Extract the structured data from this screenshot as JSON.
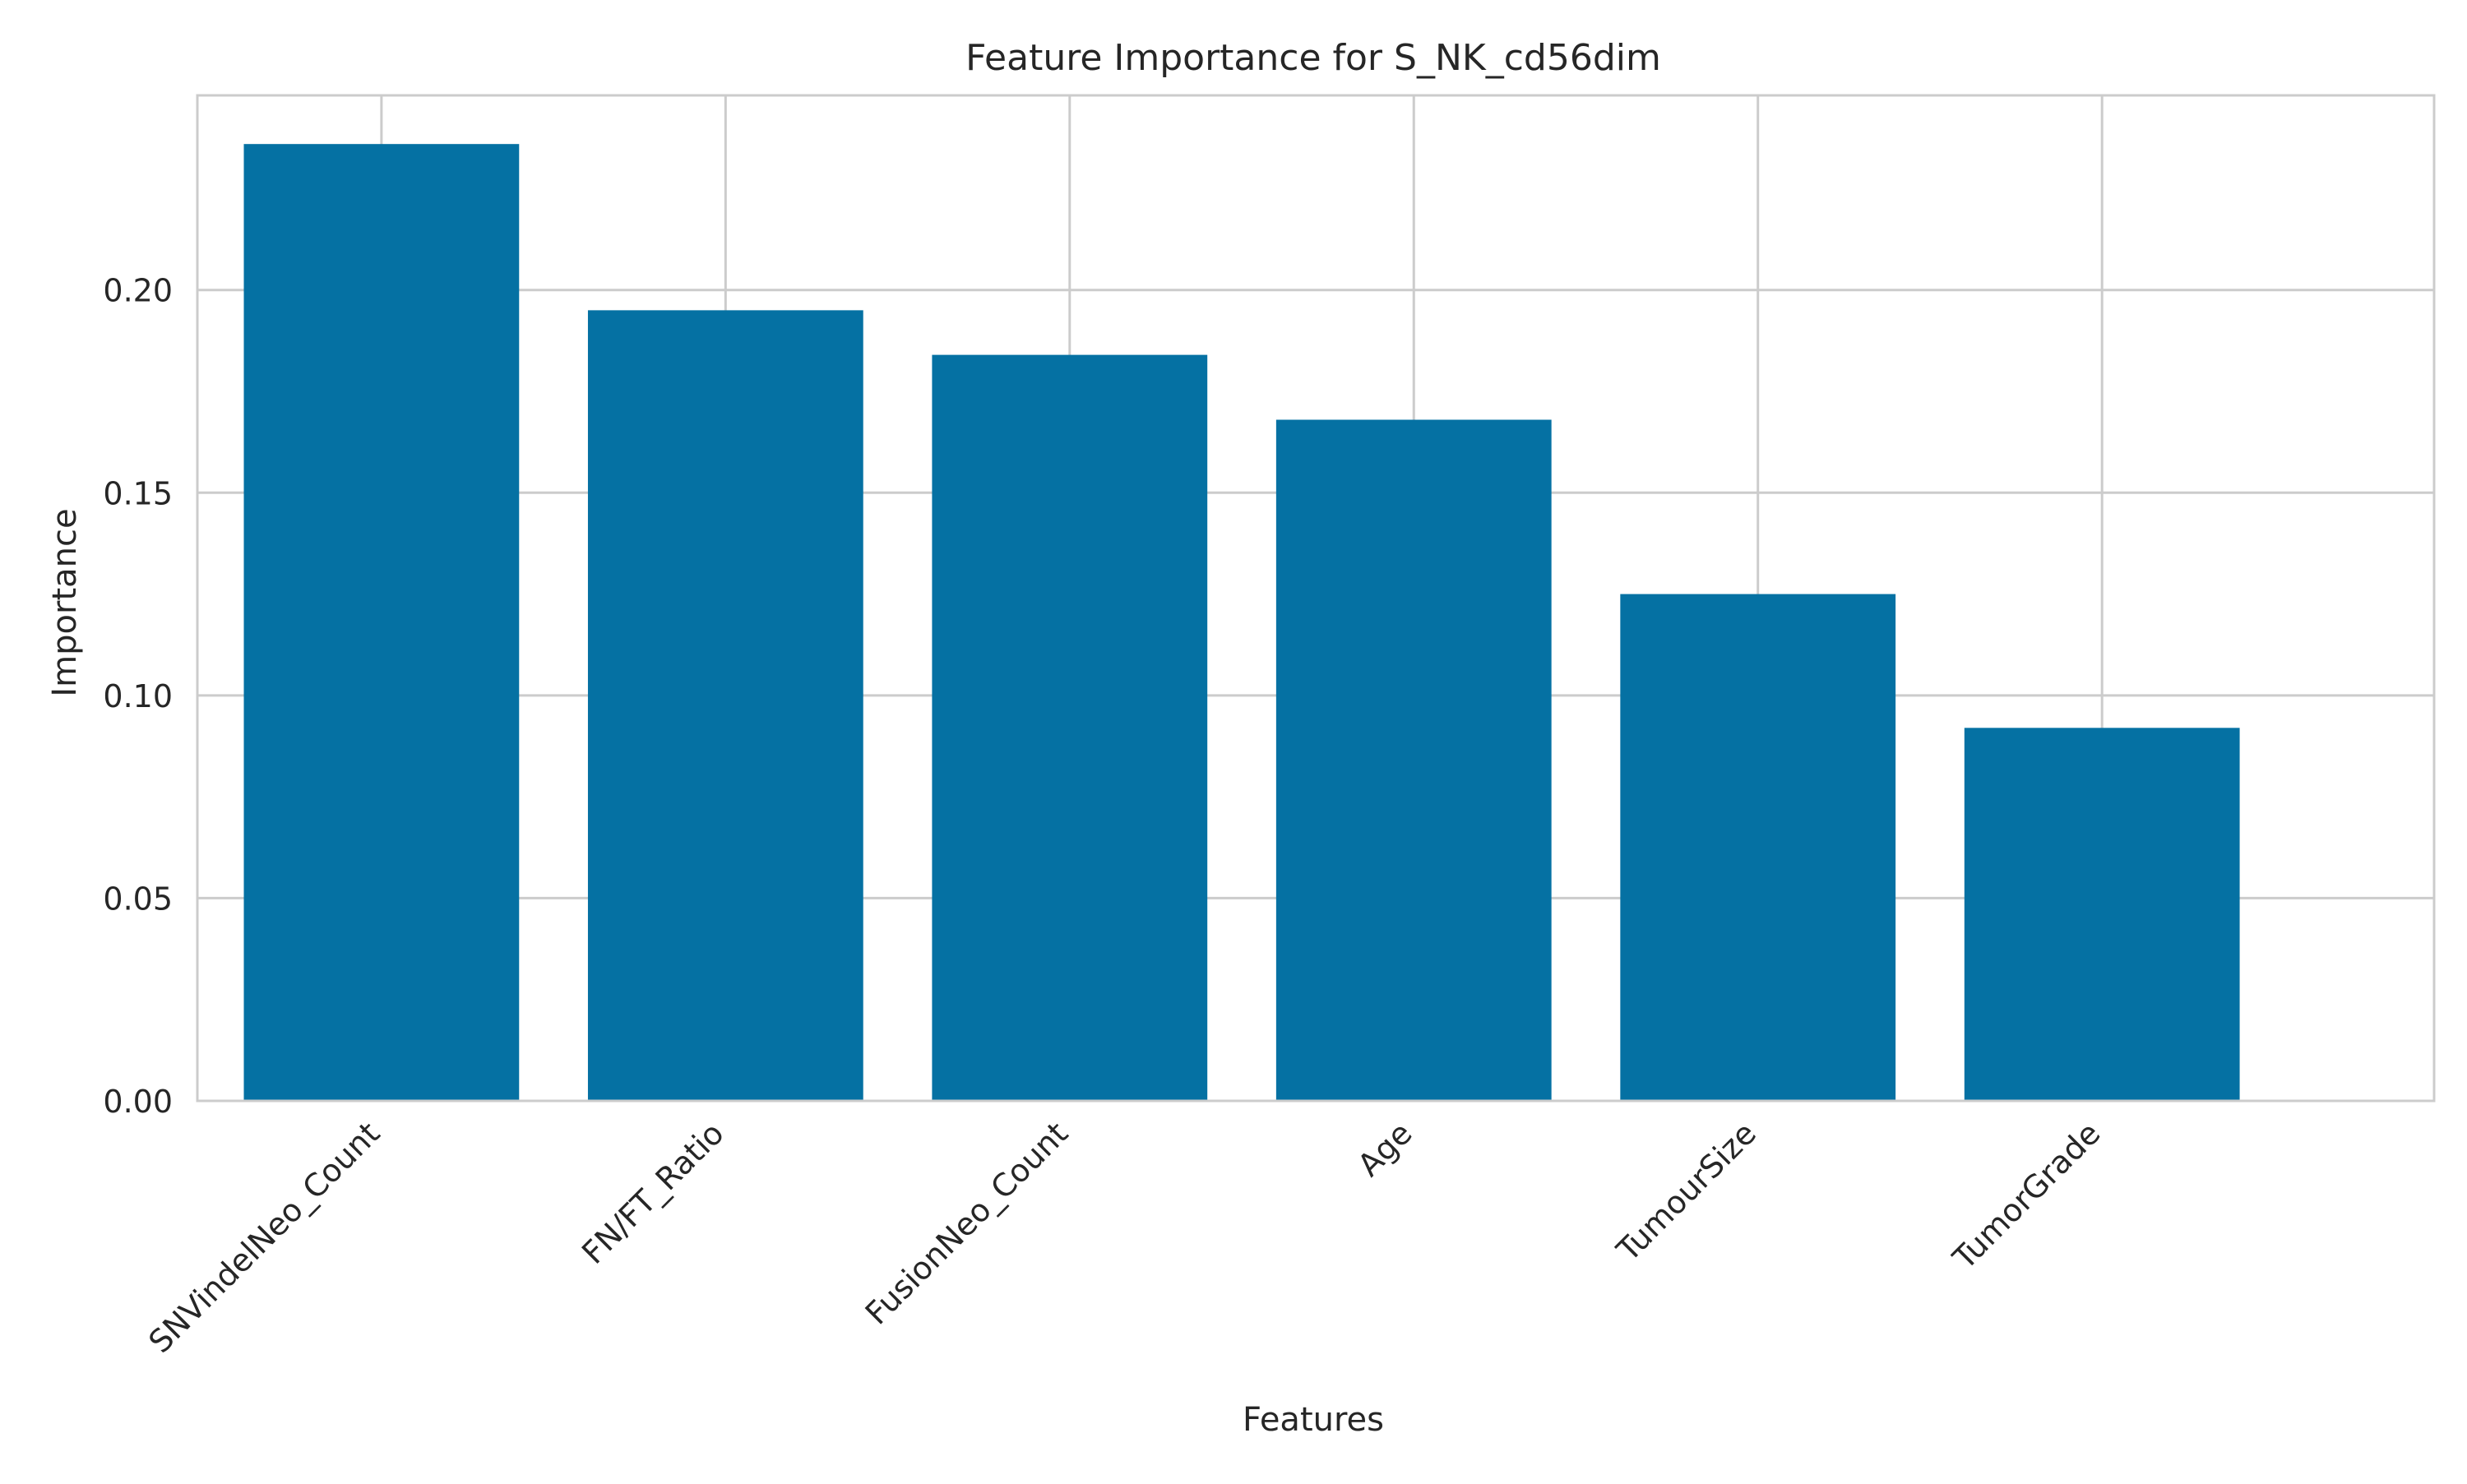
{
  "chart_data": {
    "type": "bar",
    "title": "Feature Importance for S_NK_cd56dim",
    "xlabel": "Features",
    "ylabel": "Importance",
    "categories": [
      "SNVindelNeo_Count",
      "FN/FT_Ratio",
      "FusionNeo_Count",
      "Age",
      "TumourSize",
      "TumorGrade"
    ],
    "values": [
      0.236,
      0.195,
      0.184,
      0.168,
      0.125,
      0.092
    ],
    "ylim": [
      0,
      0.248
    ],
    "yticks": [
      0.0,
      0.05,
      0.1,
      0.15,
      0.2
    ],
    "ytick_labels": [
      "0.00",
      "0.05",
      "0.10",
      "0.15",
      "0.20"
    ],
    "grid": true,
    "colors": {
      "bar": "#0571a3",
      "grid": "#cccccc",
      "axes_edge": "#cccccc"
    }
  }
}
